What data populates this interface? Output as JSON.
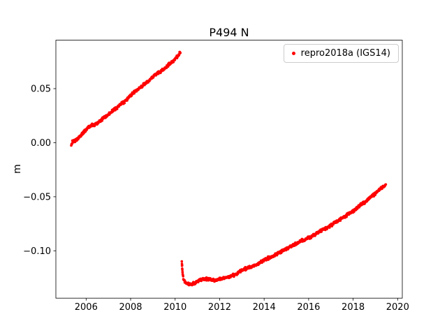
{
  "title": "P494 N",
  "chart_data": {
    "type": "scatter",
    "title": "P494 N",
    "xlabel": "",
    "ylabel": "m",
    "grid": false,
    "xlim": [
      2004.64,
      2020.21
    ],
    "ylim": [
      -0.1438,
      0.0948
    ],
    "xticks": [
      2006,
      2008,
      2010,
      2012,
      2014,
      2016,
      2018,
      2020
    ],
    "xtick_labels": [
      "2006",
      "2008",
      "2010",
      "2012",
      "2014",
      "2016",
      "2018",
      "2020"
    ],
    "yticks": [
      -0.1,
      -0.05,
      0.0,
      0.05
    ],
    "ytick_labels": [
      "−0.10",
      "−0.05",
      "0.00",
      "0.05"
    ],
    "legend": {
      "position": "upper right",
      "entries": [
        {
          "label": "repro2018a (IGS14)",
          "color": "#ff0000",
          "marker": "dot"
        }
      ]
    },
    "series": [
      {
        "name": "repro2018a (IGS14)",
        "color": "#ff0000",
        "marker_px": 3.6,
        "noise": 0.0017,
        "sample_step_years": 0.012,
        "segments": [
          {
            "anchors": [
              [
                2005.33,
                -0.0015
              ],
              [
                2005.38,
                0.0005
              ],
              [
                2005.44,
                0.001
              ],
              [
                2005.5,
                0.0015
              ],
              [
                2005.55,
                0.0025
              ],
              [
                2005.8,
                0.0075
              ],
              [
                2006.0,
                0.012
              ],
              [
                2006.15,
                0.015
              ],
              [
                2006.35,
                0.0165
              ],
              [
                2006.55,
                0.0185
              ],
              [
                2006.8,
                0.023
              ],
              [
                2007.0,
                0.026
              ],
              [
                2007.25,
                0.0305
              ],
              [
                2007.5,
                0.0345
              ],
              [
                2007.75,
                0.0385
              ],
              [
                2008.0,
                0.044
              ],
              [
                2008.25,
                0.048
              ],
              [
                2008.5,
                0.052
              ],
              [
                2008.75,
                0.056
              ],
              [
                2009.0,
                0.061
              ],
              [
                2009.2,
                0.064
              ],
              [
                2009.4,
                0.0665
              ],
              [
                2009.6,
                0.07
              ],
              [
                2009.8,
                0.0735
              ],
              [
                2009.95,
                0.0765
              ],
              [
                2010.05,
                0.079
              ],
              [
                2010.15,
                0.081
              ],
              [
                2010.25,
                0.0835
              ]
            ]
          },
          {
            "anchors": [
              [
                2010.3,
                -0.11
              ],
              [
                2010.31,
                -0.113
              ],
              [
                2010.32,
                -0.116
              ],
              [
                2010.33,
                -0.119
              ],
              [
                2010.34,
                -0.1215
              ],
              [
                2010.36,
                -0.124
              ],
              [
                2010.38,
                -0.126
              ],
              [
                2010.42,
                -0.1285
              ],
              [
                2010.5,
                -0.13
              ],
              [
                2010.6,
                -0.131
              ],
              [
                2010.75,
                -0.131
              ],
              [
                2010.9,
                -0.1295
              ],
              [
                2011.05,
                -0.128
              ],
              [
                2011.2,
                -0.1265
              ],
              [
                2011.35,
                -0.1258
              ],
              [
                2011.5,
                -0.1262
              ],
              [
                2011.65,
                -0.127
              ],
              [
                2011.8,
                -0.1275
              ],
              [
                2011.95,
                -0.1268
              ],
              [
                2012.1,
                -0.1255
              ],
              [
                2012.3,
                -0.1245
              ],
              [
                2012.5,
                -0.1235
              ],
              [
                2012.75,
                -0.1215
              ],
              [
                2013.0,
                -0.118
              ],
              [
                2013.25,
                -0.116
              ],
              [
                2013.5,
                -0.114
              ],
              [
                2013.75,
                -0.112
              ],
              [
                2014.0,
                -0.1085
              ],
              [
                2014.25,
                -0.106
              ],
              [
                2014.5,
                -0.1035
              ],
              [
                2014.75,
                -0.101
              ],
              [
                2015.0,
                -0.0985
              ],
              [
                2015.25,
                -0.0955
              ],
              [
                2015.5,
                -0.0925
              ],
              [
                2015.75,
                -0.09
              ],
              [
                2016.0,
                -0.088
              ],
              [
                2016.25,
                -0.0855
              ],
              [
                2016.5,
                -0.082
              ],
              [
                2016.75,
                -0.0795
              ],
              [
                2017.0,
                -0.0765
              ],
              [
                2017.25,
                -0.073
              ],
              [
                2017.5,
                -0.07
              ],
              [
                2017.75,
                -0.0665
              ],
              [
                2018.0,
                -0.063
              ],
              [
                2018.25,
                -0.059
              ],
              [
                2018.5,
                -0.0555
              ],
              [
                2018.75,
                -0.051
              ],
              [
                2019.0,
                -0.047
              ],
              [
                2019.2,
                -0.043
              ],
              [
                2019.35,
                -0.0405
              ],
              [
                2019.48,
                -0.0385
              ]
            ]
          }
        ]
      }
    ]
  }
}
